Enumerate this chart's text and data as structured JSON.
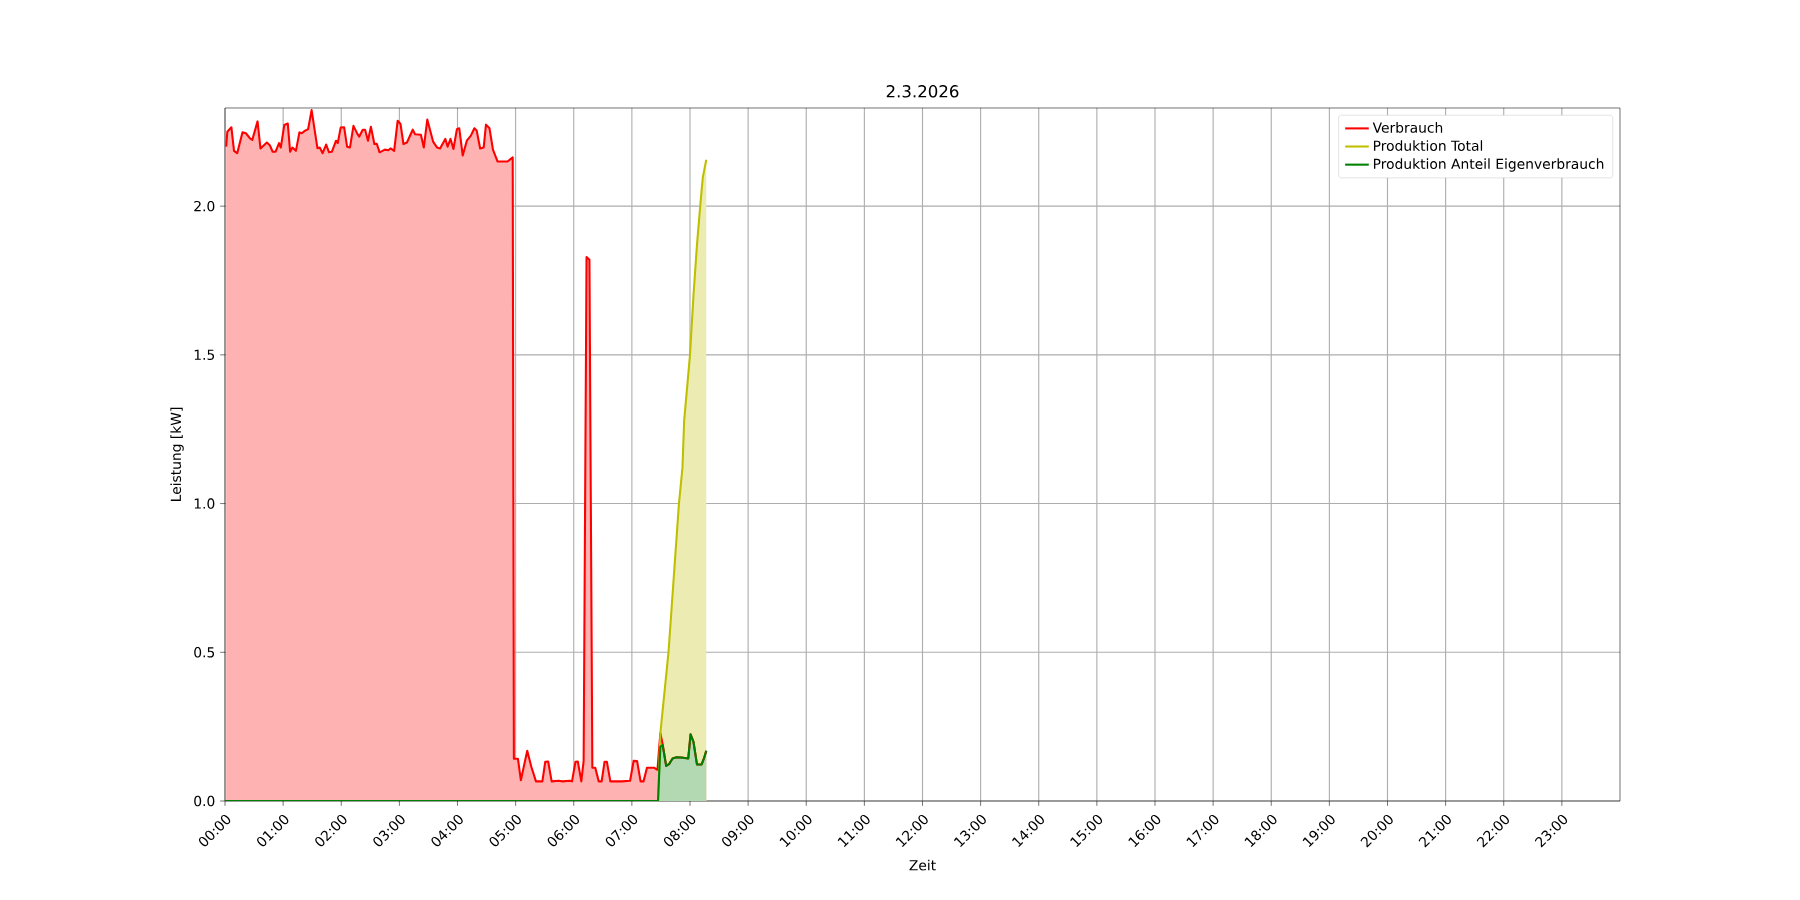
{
  "chart_data": {
    "type": "area",
    "title": "2.3.2026",
    "xlabel": "Zeit",
    "ylabel": "Leistung [kW]",
    "xlim": [
      0,
      24
    ],
    "ylim": [
      0,
      2.33
    ],
    "xticks": [
      {
        "value": 0,
        "label": "00:00"
      },
      {
        "value": 1,
        "label": "01:00"
      },
      {
        "value": 2,
        "label": "02:00"
      },
      {
        "value": 3,
        "label": "03:00"
      },
      {
        "value": 4,
        "label": "04:00"
      },
      {
        "value": 5,
        "label": "05:00"
      },
      {
        "value": 6,
        "label": "06:00"
      },
      {
        "value": 7,
        "label": "07:00"
      },
      {
        "value": 8,
        "label": "08:00"
      },
      {
        "value": 9,
        "label": "09:00"
      },
      {
        "value": 10,
        "label": "10:00"
      },
      {
        "value": 11,
        "label": "11:00"
      },
      {
        "value": 12,
        "label": "12:00"
      },
      {
        "value": 13,
        "label": "13:00"
      },
      {
        "value": 14,
        "label": "14:00"
      },
      {
        "value": 15,
        "label": "15:00"
      },
      {
        "value": 16,
        "label": "16:00"
      },
      {
        "value": 17,
        "label": "17:00"
      },
      {
        "value": 18,
        "label": "18:00"
      },
      {
        "value": 19,
        "label": "19:00"
      },
      {
        "value": 20,
        "label": "20:00"
      },
      {
        "value": 21,
        "label": "21:00"
      },
      {
        "value": 22,
        "label": "22:00"
      },
      {
        "value": 23,
        "label": "23:00"
      }
    ],
    "yticks": [
      {
        "value": 0,
        "label": "0.0"
      },
      {
        "value": 0.5,
        "label": "0.5"
      },
      {
        "value": 1,
        "label": "1.0"
      },
      {
        "value": 1.5,
        "label": "1.5"
      },
      {
        "value": 2,
        "label": "2.0"
      }
    ],
    "grid": true,
    "legend": "top right",
    "series": [
      {
        "name": "Verbrauch",
        "color": "#ff0000",
        "x": [
          0.02,
          0.04,
          0.11,
          0.155,
          0.21,
          0.3,
          0.36,
          0.43,
          0.47,
          0.56,
          0.61,
          0.72,
          0.77,
          0.82,
          0.87,
          0.93,
          0.96,
          1.02,
          1.08,
          1.12,
          1.16,
          1.22,
          1.28,
          1.32,
          1.38,
          1.43,
          1.49,
          1.59,
          1.63,
          1.68,
          1.74,
          1.79,
          1.84,
          1.91,
          1.94,
          1.99,
          2.05,
          2.1,
          2.15,
          2.21,
          2.28,
          2.31,
          2.37,
          2.41,
          2.46,
          2.51,
          2.57,
          2.61,
          2.66,
          2.75,
          2.81,
          2.85,
          2.91,
          2.97,
          3.02,
          3.07,
          3.13,
          3.23,
          3.27,
          3.37,
          3.42,
          3.48,
          3.58,
          3.65,
          3.7,
          3.79,
          3.83,
          3.88,
          3.93,
          3.99,
          4.03,
          4.09,
          4.16,
          4.23,
          4.29,
          4.33,
          4.39,
          4.45,
          4.49,
          4.55,
          4.61,
          4.69,
          4.76,
          4.86,
          4.95,
          4.97,
          5.04,
          5.09,
          5.2,
          5.27,
          5.35,
          5.46,
          5.51,
          5.56,
          5.62,
          5.74,
          5.81,
          5.93,
          5.97,
          6.03,
          6.07,
          6.13,
          6.17,
          6.22,
          6.27,
          6.32,
          6.37,
          6.43,
          6.48,
          6.53,
          6.57,
          6.63,
          6.83,
          6.97,
          7.03,
          7.09,
          7.15,
          7.2,
          7.26,
          7.38,
          7.44,
          7.49,
          7.53,
          7.59,
          7.64,
          7.7,
          7.77,
          7.85,
          7.97,
          8.01,
          8.06,
          8.12,
          8.2,
          8.24,
          8.28
        ],
        "values": [
          2.2,
          2.25,
          2.265,
          2.186,
          2.178,
          2.248,
          2.245,
          2.228,
          2.223,
          2.285,
          2.194,
          2.214,
          2.205,
          2.183,
          2.183,
          2.212,
          2.197,
          2.273,
          2.278,
          2.183,
          2.197,
          2.186,
          2.248,
          2.245,
          2.254,
          2.259,
          2.323,
          2.195,
          2.197,
          2.178,
          2.207,
          2.181,
          2.183,
          2.22,
          2.212,
          2.264,
          2.265,
          2.2,
          2.197,
          2.27,
          2.242,
          2.234,
          2.257,
          2.257,
          2.22,
          2.267,
          2.209,
          2.21,
          2.181,
          2.19,
          2.188,
          2.194,
          2.186,
          2.287,
          2.276,
          2.209,
          2.214,
          2.257,
          2.242,
          2.24,
          2.197,
          2.291,
          2.217,
          2.197,
          2.194,
          2.226,
          2.2,
          2.226,
          2.192,
          2.259,
          2.262,
          2.17,
          2.22,
          2.237,
          2.262,
          2.254,
          2.194,
          2.197,
          2.274,
          2.262,
          2.19,
          2.15,
          2.15,
          2.15,
          2.164,
          0.142,
          0.142,
          0.07,
          0.169,
          0.115,
          0.066,
          0.066,
          0.132,
          0.133,
          0.066,
          0.068,
          0.066,
          0.068,
          0.066,
          0.132,
          0.133,
          0.066,
          0.135,
          1.829,
          1.82,
          0.112,
          0.112,
          0.066,
          0.066,
          0.132,
          0.132,
          0.066,
          0.066,
          0.068,
          0.135,
          0.134,
          0.066,
          0.066,
          0.112,
          0.112,
          0.105,
          0.228,
          0.19,
          0.118,
          0.124,
          0.143,
          0.147,
          0.146,
          0.143,
          0.224,
          0.199,
          0.123,
          0.123,
          0.143,
          0.169
        ]
      },
      {
        "name": "Produktion Total",
        "color": "#bfbf00",
        "x": [
          0,
          7.45,
          7.49,
          7.63,
          7.72,
          7.81,
          7.87,
          7.9,
          8.0,
          8.06,
          8.12,
          8.18,
          8.22,
          8.28
        ],
        "values": [
          0,
          0,
          0.228,
          0.5,
          0.75,
          1.0,
          1.12,
          1.28,
          1.5,
          1.7,
          1.87,
          2.01,
          2.096,
          2.156
        ]
      },
      {
        "name": "Produktion Anteil Eigenverbrauch",
        "color": "#008000",
        "x": [
          0,
          7.45,
          7.49,
          7.53,
          7.59,
          7.64,
          7.7,
          7.77,
          7.85,
          7.97,
          8.01,
          8.06,
          8.12,
          8.2,
          8.24,
          8.28
        ],
        "values": [
          0,
          0,
          0.182,
          0.188,
          0.118,
          0.124,
          0.143,
          0.147,
          0.146,
          0.143,
          0.224,
          0.199,
          0.123,
          0.123,
          0.143,
          0.169
        ]
      }
    ]
  }
}
